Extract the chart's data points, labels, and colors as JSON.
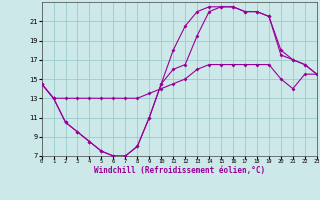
{
  "xlabel": "Windchill (Refroidissement éolien,°C)",
  "xlim": [
    0,
    23
  ],
  "ylim": [
    7,
    23
  ],
  "yticks": [
    7,
    9,
    11,
    13,
    15,
    17,
    19,
    21
  ],
  "xtick_labels": [
    "0",
    "1",
    "2",
    "3",
    "4",
    "5",
    "6",
    "7",
    "8",
    "9",
    "10",
    "11",
    "12",
    "13",
    "14",
    "15",
    "16",
    "17",
    "18",
    "19",
    "20",
    "21",
    "22",
    "23"
  ],
  "xtick_positions": [
    0,
    1,
    2,
    3,
    4,
    5,
    6,
    7,
    8,
    9,
    10,
    11,
    12,
    13,
    14,
    15,
    16,
    17,
    18,
    19,
    20,
    21,
    22,
    23
  ],
  "bg_color": "#cce8e8",
  "line_color": "#990099",
  "grid_color": "#99cccc",
  "series": [
    {
      "x": [
        0,
        1,
        2,
        3,
        4,
        5,
        6,
        7,
        8,
        9,
        10,
        11,
        12,
        13,
        14,
        15,
        16,
        17,
        18,
        19,
        20,
        21,
        22,
        23
      ],
      "y": [
        14.5,
        13.0,
        13.0,
        13.0,
        13.0,
        13.0,
        13.0,
        13.0,
        13.0,
        13.5,
        14.0,
        14.5,
        15.0,
        16.0,
        16.5,
        16.5,
        16.5,
        16.5,
        16.5,
        16.5,
        15.0,
        14.0,
        15.5,
        15.5
      ]
    },
    {
      "x": [
        0,
        1,
        2,
        3,
        4,
        5,
        6,
        7,
        8,
        9,
        10,
        11,
        12,
        13,
        14,
        15,
        16,
        17,
        18,
        19,
        20,
        21,
        22,
        23
      ],
      "y": [
        14.5,
        13.0,
        10.5,
        9.5,
        8.5,
        7.5,
        7.0,
        7.0,
        8.0,
        11.0,
        14.5,
        16.0,
        16.5,
        19.5,
        22.0,
        22.5,
        22.5,
        22.0,
        22.0,
        21.5,
        18.0,
        17.0,
        16.5,
        15.5
      ]
    },
    {
      "x": [
        0,
        1,
        2,
        3,
        4,
        5,
        6,
        7,
        8,
        9,
        10,
        11,
        12,
        13,
        14,
        15,
        16,
        17,
        18,
        19,
        20,
        21,
        22,
        23
      ],
      "y": [
        14.5,
        13.0,
        10.5,
        9.5,
        8.5,
        7.5,
        7.0,
        7.0,
        8.0,
        11.0,
        14.5,
        18.0,
        20.5,
        22.0,
        22.5,
        22.5,
        22.5,
        22.0,
        22.0,
        21.5,
        17.5,
        17.0,
        16.5,
        15.5
      ]
    }
  ]
}
